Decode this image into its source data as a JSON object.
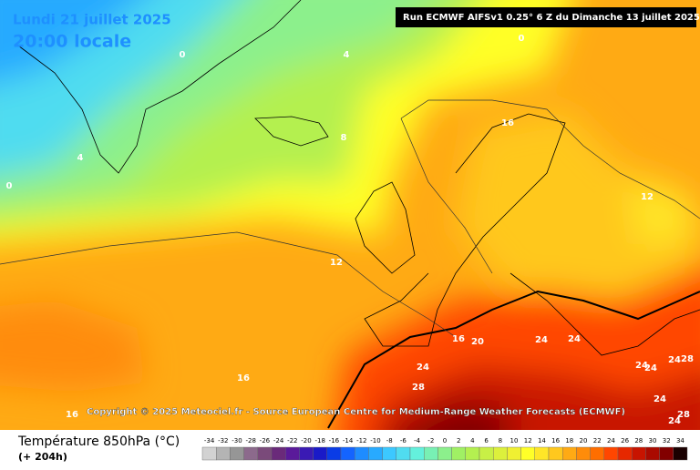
{
  "header": {
    "date": "Lundi 21 juillet 2025",
    "time": "20:00 locale",
    "run": "Run ECMWF AIFSv1 0.25° 6 Z du Dimanche 13 juillet 2025"
  },
  "contour_labels": [
    0,
    4,
    0,
    8,
    4,
    0,
    16,
    12,
    12,
    16,
    20,
    24,
    24,
    24,
    28,
    16,
    24,
    24,
    24,
    28,
    24,
    28,
    24,
    16
  ],
  "copyright": "Copyright © 2025 Meteociel.fr - Source European Centre for Medium-Range Weather Forecasts (ECMWF)",
  "legend": {
    "title": "Température 850hPa (°C)",
    "lead": "(+ 204h)",
    "ticks": [
      -34,
      -32,
      -30,
      -28,
      -26,
      -24,
      -22,
      -20,
      -18,
      -16,
      -14,
      -12,
      -10,
      -8,
      -6,
      -4,
      -2,
      0,
      2,
      4,
      6,
      8,
      10,
      12,
      14,
      16,
      18,
      20,
      22,
      24,
      26,
      28,
      30,
      32,
      34
    ],
    "colors": [
      "#d2d2d2",
      "#b4b4b4",
      "#969696",
      "#8c6a8c",
      "#7a4a7a",
      "#6a2a7a",
      "#5a1a9a",
      "#3a1ab4",
      "#1a1ac8",
      "#0a3ce6",
      "#1464ff",
      "#1e8cff",
      "#28aaff",
      "#3cc8ff",
      "#50dcf0",
      "#64f0dc",
      "#78f0b4",
      "#8cf08c",
      "#a0f064",
      "#b4f050",
      "#c8f046",
      "#dcf03c",
      "#f0f032",
      "#ffff28",
      "#ffe628",
      "#ffc81e",
      "#ffaa14",
      "#ff8c0a",
      "#ff6e00",
      "#ff4600",
      "#e62800",
      "#c81400",
      "#aa0a00",
      "#820000",
      "#1a0000"
    ]
  }
}
